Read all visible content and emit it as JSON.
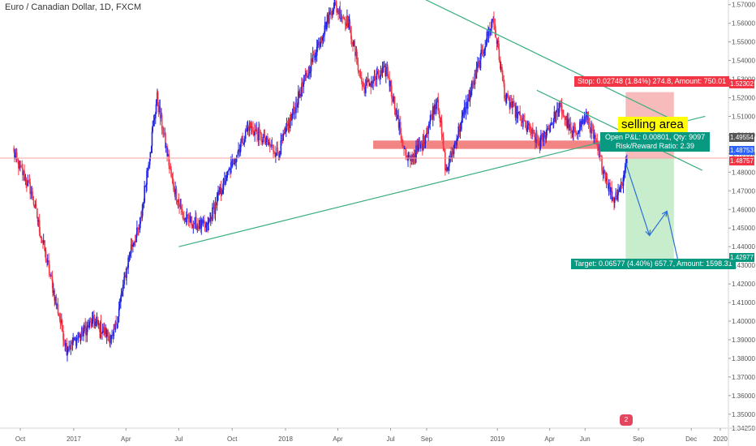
{
  "title": "Euro / Canadian Dollar, 1D, FXCM",
  "selling_area_label": "selling area",
  "stop_label": "Stop: 0.02748 (1.84%) 274.8, Amount: 750.01",
  "pnl_line1": "Open P&L: 0.00801, Qty: 9097",
  "pnl_line2": "Risk/Reward Ratio: 2.39",
  "target_label": "Target: 0.06577 (4.40%) 657.7, Amount: 1598.31",
  "price_tags": [
    {
      "text": "1.52302",
      "color": "#f23645"
    },
    {
      "text": "1.49554",
      "color": "#555555"
    },
    {
      "text": "1.48753",
      "color": "#2962ff"
    },
    {
      "text": "1.48757",
      "color": "#f23645"
    },
    {
      "text": "1.42977",
      "color": "#089981"
    }
  ],
  "logo_text": "2",
  "colors": {
    "up": "#1e22e6",
    "down": "#f23645",
    "trendline": "#3aae7f",
    "support_zone": "#f06e6e",
    "stop_zone": "#f7b4b4",
    "target_zone": "#c2ebc6",
    "projection": "#2e6fd8"
  },
  "chart_data": {
    "type": "candlestick",
    "title": "Euro / Canadian Dollar, 1D, FXCM",
    "y_axis": {
      "range": [
        1.3425,
        1.5725
      ],
      "ticks": [
        "1.57000",
        "1.56000",
        "1.55000",
        "1.54000",
        "1.53000",
        "1.52000",
        "1.51000",
        "1.50000",
        "1.49000",
        "1.48000",
        "1.47000",
        "1.46000",
        "1.45000",
        "1.44000",
        "1.43000",
        "1.42000",
        "1.41000",
        "1.40000",
        "1.39000",
        "1.38000",
        "1.37000",
        "1.36000",
        "1.35000",
        "1.34250"
      ]
    },
    "x_axis": {
      "ticks": [
        "Oct",
        "2017",
        "Apr",
        "Jul",
        "Oct",
        "2018",
        "Apr",
        "Jul",
        "Sep",
        "2019",
        "Apr",
        "Jun",
        "Sep",
        "Dec",
        "2020"
      ]
    },
    "price_path": [
      {
        "date": "2016-09-20",
        "price": 1.49
      },
      {
        "date": "2016-10-20",
        "price": 1.47
      },
      {
        "date": "2016-11-25",
        "price": 1.42
      },
      {
        "date": "2016-12-20",
        "price": 1.385
      },
      {
        "date": "2017-02-05",
        "price": 1.4
      },
      {
        "date": "2017-03-10",
        "price": 1.39
      },
      {
        "date": "2017-04-10",
        "price": 1.44
      },
      {
        "date": "2017-04-25",
        "price": 1.45
      },
      {
        "date": "2017-05-25",
        "price": 1.52
      },
      {
        "date": "2017-06-20",
        "price": 1.475
      },
      {
        "date": "2017-07-10",
        "price": 1.455
      },
      {
        "date": "2017-08-20",
        "price": 1.45
      },
      {
        "date": "2017-09-05",
        "price": 1.465
      },
      {
        "date": "2017-10-30",
        "price": 1.505
      },
      {
        "date": "2017-12-20",
        "price": 1.49
      },
      {
        "date": "2018-02-10",
        "price": 1.535
      },
      {
        "date": "2018-03-25",
        "price": 1.57
      },
      {
        "date": "2018-04-20",
        "price": 1.56
      },
      {
        "date": "2018-05-15",
        "price": 1.525
      },
      {
        "date": "2018-06-25",
        "price": 1.535
      },
      {
        "date": "2018-07-30",
        "price": 1.485
      },
      {
        "date": "2018-08-25",
        "price": 1.495
      },
      {
        "date": "2018-09-20",
        "price": 1.52
      },
      {
        "date": "2018-10-05",
        "price": 1.48
      },
      {
        "date": "2018-12-25",
        "price": 1.563
      },
      {
        "date": "2019-01-15",
        "price": 1.52
      },
      {
        "date": "2019-02-20",
        "price": 1.505
      },
      {
        "date": "2019-03-15",
        "price": 1.495
      },
      {
        "date": "2019-04-20",
        "price": 1.515
      },
      {
        "date": "2019-05-10",
        "price": 1.5
      },
      {
        "date": "2019-06-05",
        "price": 1.51
      },
      {
        "date": "2019-06-25",
        "price": 1.49
      },
      {
        "date": "2019-07-20",
        "price": 1.465
      },
      {
        "date": "2019-08-05",
        "price": 1.475
      },
      {
        "date": "2019-08-12",
        "price": 1.4875
      }
    ],
    "trendlines": [
      {
        "name": "ascending support",
        "from": {
          "date": "2017-07-01",
          "price": 1.44
        },
        "to": {
          "date": "2019-12-25",
          "price": 1.51
        }
      },
      {
        "name": "upper resistance",
        "from": {
          "date": "2018-08-15",
          "price": 1.575
        },
        "to": {
          "date": "2019-11-20",
          "price": 1.505
        }
      },
      {
        "name": "descending channel",
        "from": {
          "date": "2019-03-10",
          "price": 1.524
        },
        "to": {
          "date": "2019-12-20",
          "price": 1.481
        }
      }
    ],
    "zones": [
      {
        "name": "resistance zone",
        "date_from": "2018-06-01",
        "date_to": "2019-07-20",
        "price_from": 1.4925,
        "price_to": 1.497
      },
      {
        "name": "stop zone",
        "date_from": "2019-08-10",
        "date_to": "2019-11-01",
        "price_from": 1.48753,
        "price_to": 1.52302
      },
      {
        "name": "target zone",
        "date_from": "2019-08-10",
        "date_to": "2019-11-01",
        "price_from": 1.42977,
        "price_to": 1.48753
      }
    ],
    "projection": [
      {
        "date": "2019-08-10",
        "price": 1.485
      },
      {
        "date": "2019-09-20",
        "price": 1.446
      },
      {
        "date": "2019-10-20",
        "price": 1.459
      },
      {
        "date": "2019-11-10",
        "price": 1.43
      }
    ],
    "levels": [
      1.52302,
      1.49554,
      1.48753,
      1.48757,
      1.42977
    ]
  }
}
